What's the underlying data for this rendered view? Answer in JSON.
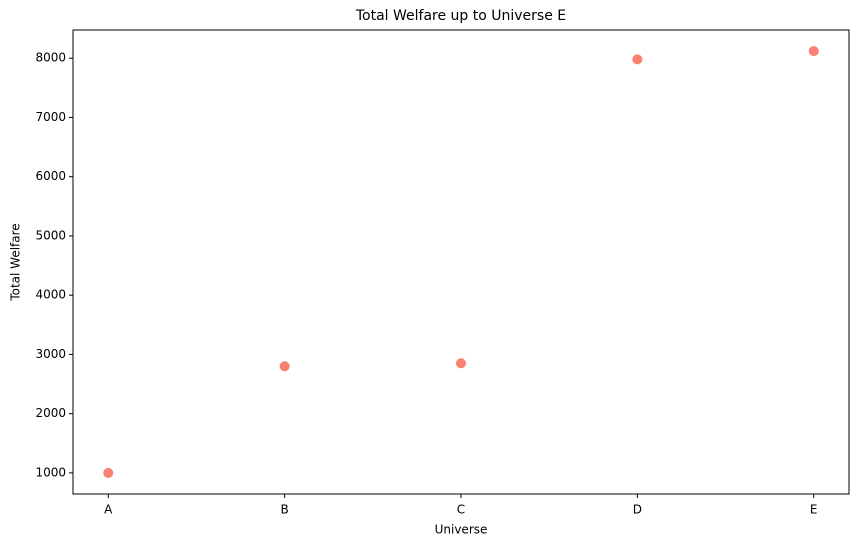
{
  "chart_data": {
    "type": "scatter",
    "title": "Total Welfare up to Universe E",
    "x_label": "Universe",
    "y_label": "Total Welfare",
    "categories": [
      "A",
      "B",
      "C",
      "D",
      "E"
    ],
    "values": [
      1000,
      2800,
      2850,
      7980,
      8120
    ],
    "color": "#fa8072",
    "ylim": [
      644,
      8476
    ],
    "yticks": [
      1000,
      2000,
      3000,
      4000,
      5000,
      6000,
      7000,
      8000
    ],
    "grid": false
  }
}
